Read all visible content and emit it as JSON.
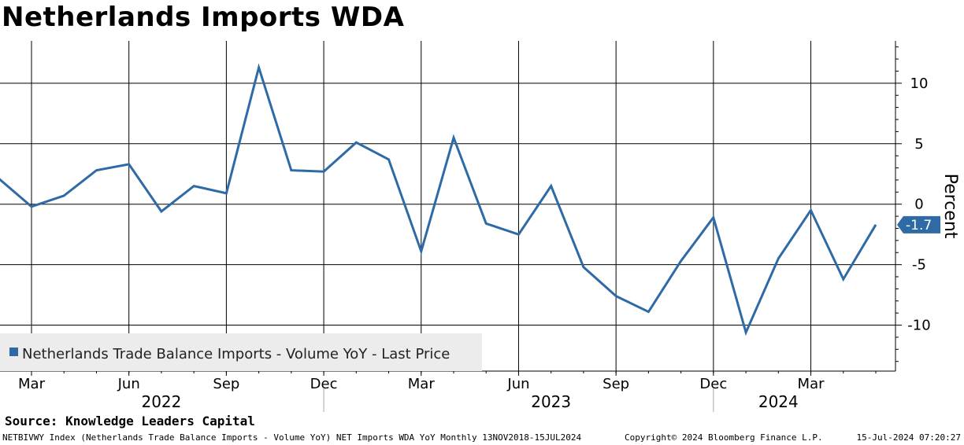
{
  "title": "Netherlands Imports WDA",
  "source": "Source: Knowledge Leaders Capital",
  "footer": {
    "left": "NETBIVWY Index (Netherlands Trade Balance Imports - Volume YoY) NET Imports WDA YoY  Monthly 13NOV2018-15JUL2024",
    "copyright": "Copyright© 2024 Bloomberg Finance L.P.",
    "timestamp": "15-Jul-2024 07:20:27"
  },
  "colors": {
    "line": "#2e6aa6",
    "badge": "#2e6aa6",
    "legend_bg": "#ececec"
  },
  "chart_data": {
    "type": "line",
    "ylabel": "Percent",
    "ylim": [
      -13.8,
      13.5
    ],
    "yticks": [
      10,
      5,
      0,
      -5,
      -10
    ],
    "x_month_range": [
      "2022-01",
      "2024-05"
    ],
    "month_ticks": [
      {
        "label": "Mar",
        "month": "2022-03"
      },
      {
        "label": "Jun",
        "month": "2022-06"
      },
      {
        "label": "Sep",
        "month": "2022-09"
      },
      {
        "label": "Dec",
        "month": "2022-12"
      },
      {
        "label": "Mar",
        "month": "2023-03"
      },
      {
        "label": "Jun",
        "month": "2023-06"
      },
      {
        "label": "Sep",
        "month": "2023-09"
      },
      {
        "label": "Dec",
        "month": "2023-12"
      },
      {
        "label": "Mar",
        "month": "2024-03"
      }
    ],
    "year_labels": [
      {
        "label": "2022",
        "month": "2022-07"
      },
      {
        "label": "2023",
        "month": "2023-07"
      },
      {
        "label": "2024",
        "month": "2024-02"
      }
    ],
    "year_separators": [
      "2022-12",
      "2023-12"
    ],
    "series": [
      {
        "name": "Netherlands Trade Balance Imports - Volume YoY - Last Price",
        "last_value": "-1.7",
        "x": [
          "2022-02",
          "2022-03",
          "2022-04",
          "2022-05",
          "2022-06",
          "2022-07",
          "2022-08",
          "2022-09",
          "2022-10",
          "2022-11",
          "2022-12",
          "2023-01",
          "2023-02",
          "2023-03",
          "2023-04",
          "2023-05",
          "2023-06",
          "2023-07",
          "2023-08",
          "2023-09",
          "2023-10",
          "2023-11",
          "2023-12",
          "2024-01",
          "2024-02",
          "2024-03",
          "2024-04",
          "2024-05"
        ],
        "values": [
          2.1,
          -0.2,
          0.7,
          2.8,
          3.3,
          -0.6,
          1.5,
          0.9,
          11.3,
          2.8,
          2.7,
          5.1,
          3.7,
          -3.9,
          5.5,
          -1.6,
          -2.5,
          1.5,
          -5.2,
          -7.6,
          -8.9,
          -4.7,
          -1.1,
          -10.6,
          -4.5,
          -0.5,
          -6.2,
          -1.7
        ]
      }
    ]
  }
}
